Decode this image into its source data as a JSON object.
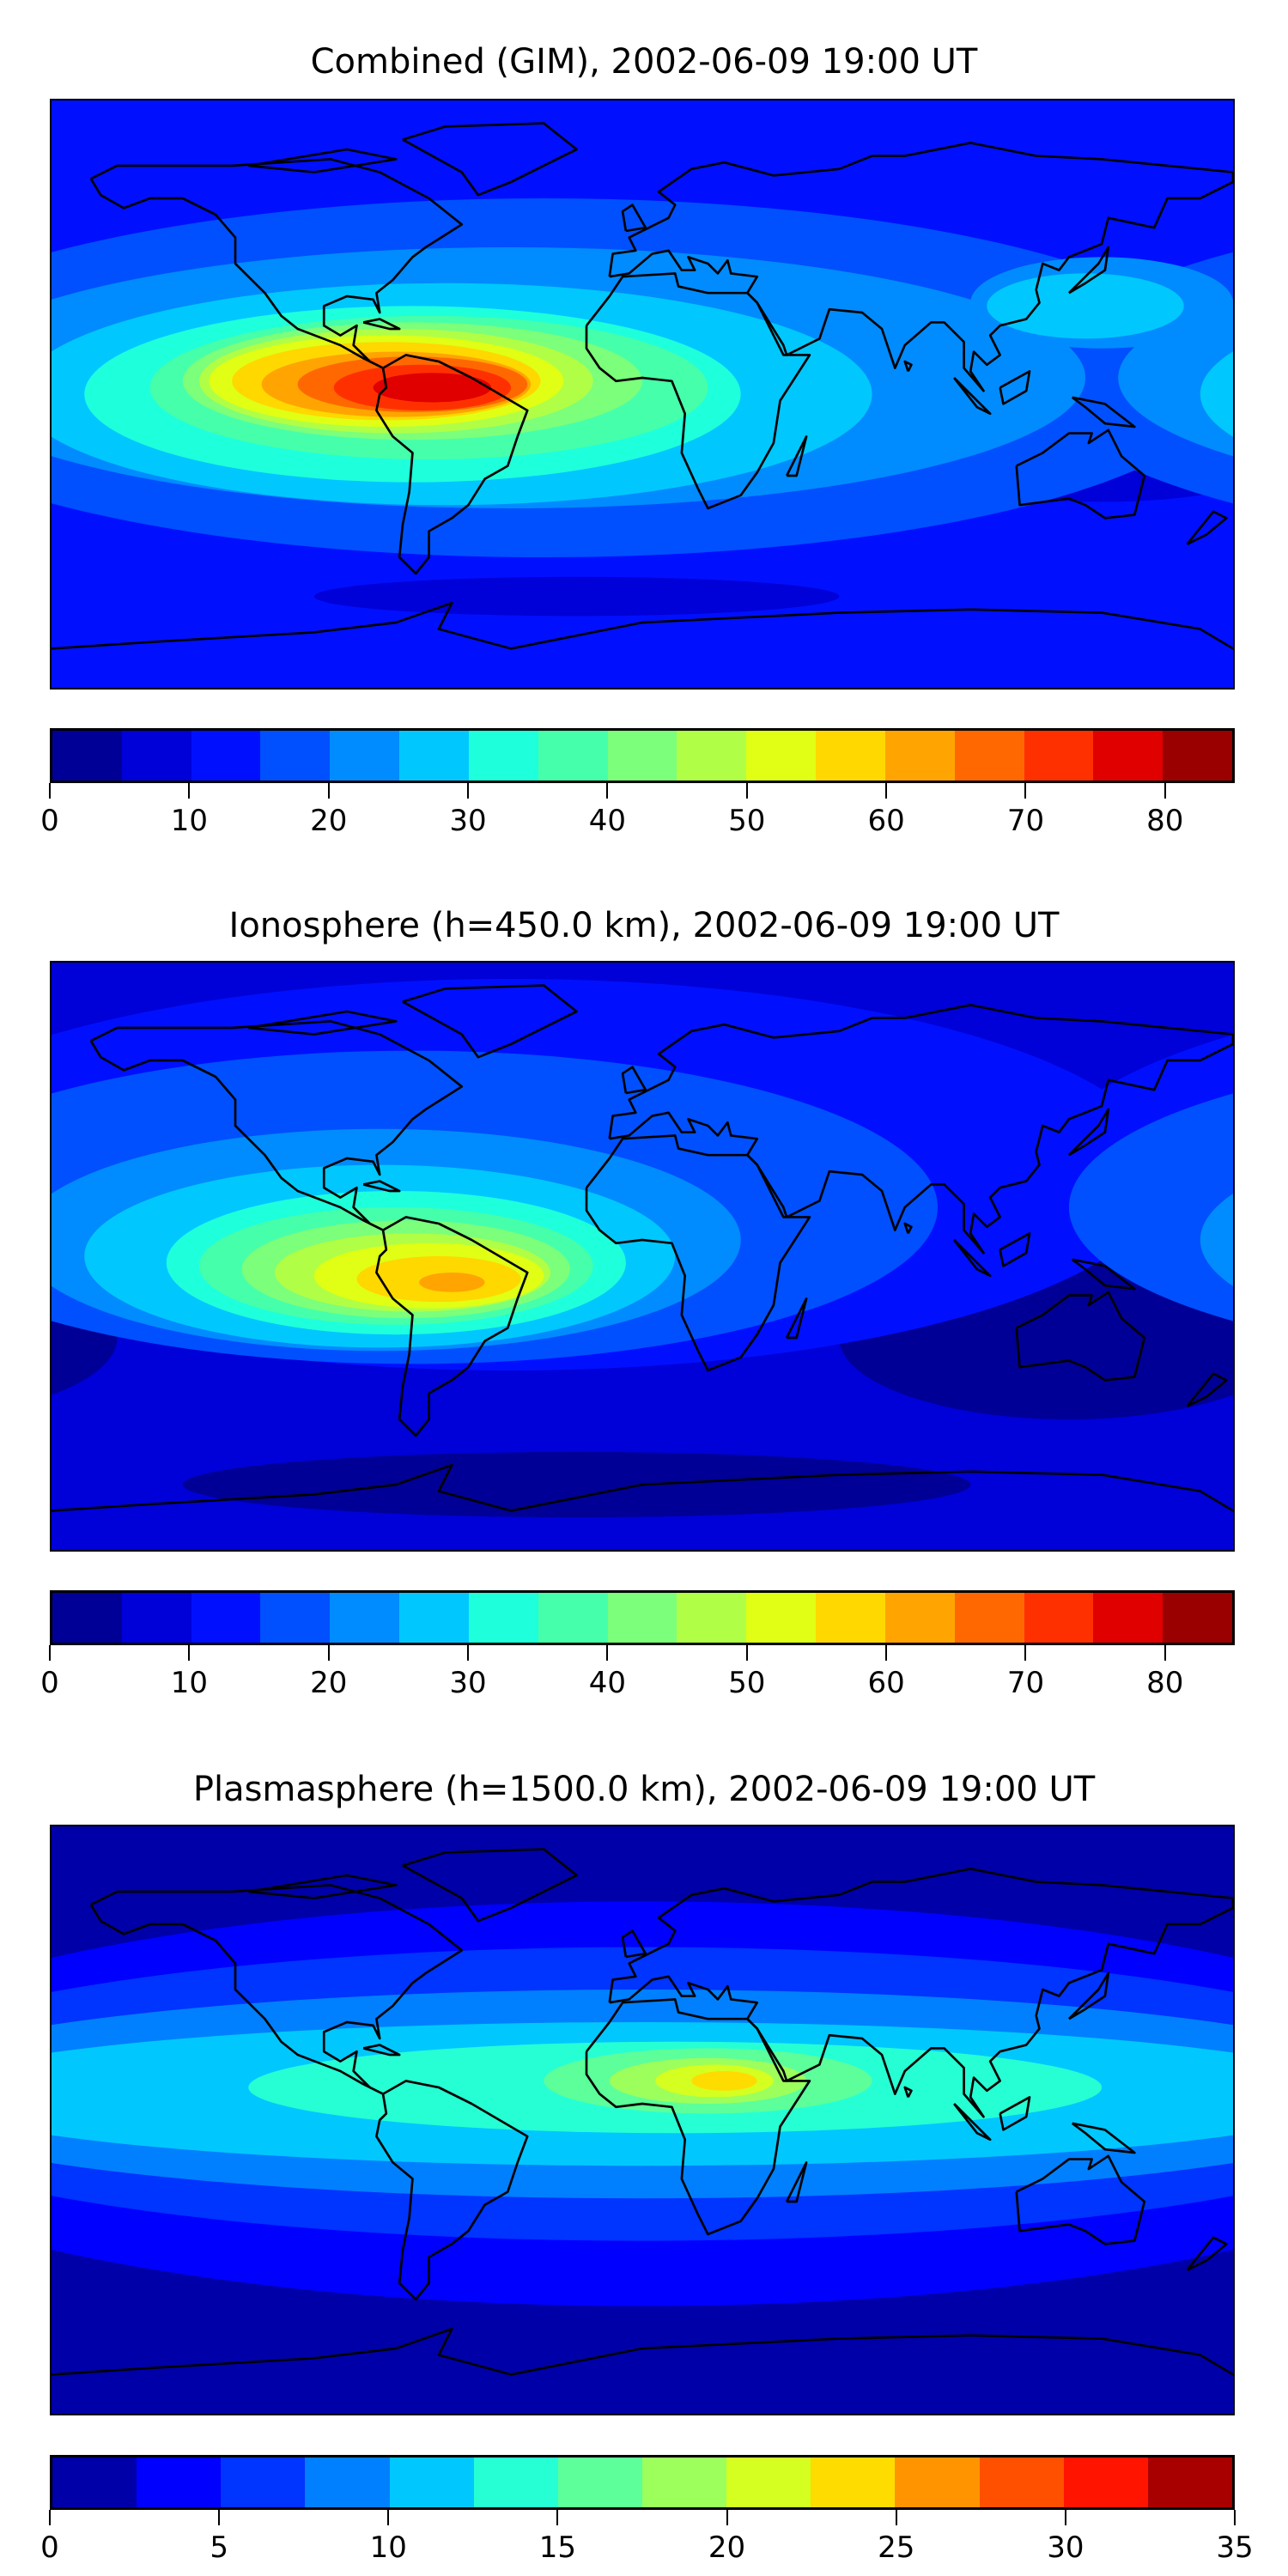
{
  "chart_data": [
    {
      "type": "heatmap",
      "title": "Combined (GIM), 2002-06-09 19:00 UT",
      "projection": "equirectangular world map with coastlines",
      "colorbar": {
        "levels": [
          0,
          5,
          10,
          15,
          20,
          25,
          30,
          35,
          40,
          45,
          50,
          55,
          60,
          65,
          70,
          75,
          80,
          85
        ],
        "colors": [
          "#000096",
          "#0000d8",
          "#0010ff",
          "#0050ff",
          "#008cff",
          "#00c8ff",
          "#1effdc",
          "#46ffaa",
          "#7cff7a",
          "#b0ff46",
          "#e0ff14",
          "#ffd800",
          "#ffa400",
          "#ff6800",
          "#ff3000",
          "#e00000",
          "#9a0000"
        ],
        "ticks": [
          "0",
          "10",
          "20",
          "30",
          "40",
          "50",
          "60",
          "70",
          "80"
        ],
        "range": [
          0,
          85
        ]
      },
      "peak": {
        "lon": -65,
        "lat": 2,
        "value_range": [
          75,
          80
        ]
      }
    },
    {
      "type": "heatmap",
      "title": "Ionosphere  (h=450.0 km), 2002-06-09 19:00 UT",
      "projection": "equirectangular world map with coastlines",
      "colorbar": {
        "levels": [
          0,
          5,
          10,
          15,
          20,
          25,
          30,
          35,
          40,
          45,
          50,
          55,
          60,
          65,
          70,
          75,
          80,
          85
        ],
        "colors": [
          "#000096",
          "#0000d8",
          "#0010ff",
          "#0050ff",
          "#008cff",
          "#00c8ff",
          "#1effdc",
          "#46ffaa",
          "#7cff7a",
          "#b0ff46",
          "#e0ff14",
          "#ffd800",
          "#ffa400",
          "#ff6800",
          "#ff3000",
          "#e00000",
          "#9a0000"
        ],
        "ticks": [
          "0",
          "10",
          "20",
          "30",
          "40",
          "50",
          "60",
          "70",
          "80"
        ],
        "range": [
          0,
          85
        ]
      },
      "peak": {
        "lon": -58,
        "lat": -8,
        "value_range": [
          60,
          65
        ]
      }
    },
    {
      "type": "heatmap",
      "title": "Plasmasphere (h=1500.0 km), 2002-06-09 19:00 UT",
      "projection": "equirectangular world map with coastlines",
      "colorbar": {
        "levels": [
          0,
          2.5,
          5,
          7.5,
          10,
          12.5,
          15,
          17.5,
          20,
          22.5,
          25,
          27.5,
          30,
          32.5,
          35
        ],
        "colors": [
          "#0000a8",
          "#0000ff",
          "#0034ff",
          "#0080ff",
          "#00c8ff",
          "#26ffd4",
          "#5cff9a",
          "#9cff5c",
          "#d4ff20",
          "#ffdc00",
          "#ff9400",
          "#ff5000",
          "#ff1400",
          "#a80000"
        ],
        "ticks": [
          "0",
          "5",
          "10",
          "15",
          "20",
          "25",
          "30",
          "35"
        ],
        "range": [
          0,
          35
        ]
      },
      "peak": {
        "lon": 25,
        "lat": 12,
        "value_range": [
          22.5,
          25
        ]
      }
    }
  ]
}
